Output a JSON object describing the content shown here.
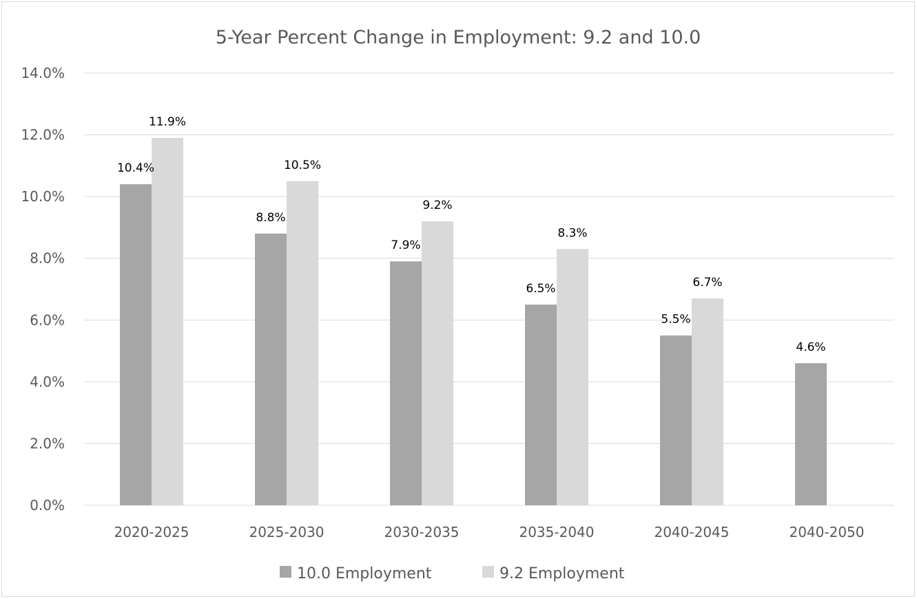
{
  "chart_data": {
    "type": "bar",
    "title": "5-Year Percent Change in Employment: 9.2 and 10.0",
    "categories": [
      "2020-2025",
      "2025-2030",
      "2030-2035",
      "2035-2040",
      "2040-2045",
      "2040-2050"
    ],
    "series": [
      {
        "name": "10.0 Employment",
        "color": "#a6a6a6",
        "values": [
          10.4,
          8.8,
          7.9,
          6.5,
          5.5,
          4.6
        ],
        "labels": [
          "10.4%",
          "8.8%",
          "7.9%",
          "6.5%",
          "5.5%",
          "4.6%"
        ]
      },
      {
        "name": "9.2 Employment",
        "color": "#d9d9d9",
        "values": [
          11.9,
          10.5,
          9.2,
          8.3,
          6.7,
          null
        ],
        "labels": [
          "11.9%",
          "10.5%",
          "9.2%",
          "8.3%",
          "6.7%",
          null
        ]
      }
    ],
    "yticks": [
      "0.0%",
      "2.0%",
      "4.0%",
      "6.0%",
      "8.0%",
      "10.0%",
      "12.0%",
      "14.0%"
    ],
    "ylim": [
      0,
      14
    ],
    "ytick_step": 2,
    "xlabel": "",
    "ylabel": "",
    "grid": true,
    "legend_position": "bottom"
  }
}
